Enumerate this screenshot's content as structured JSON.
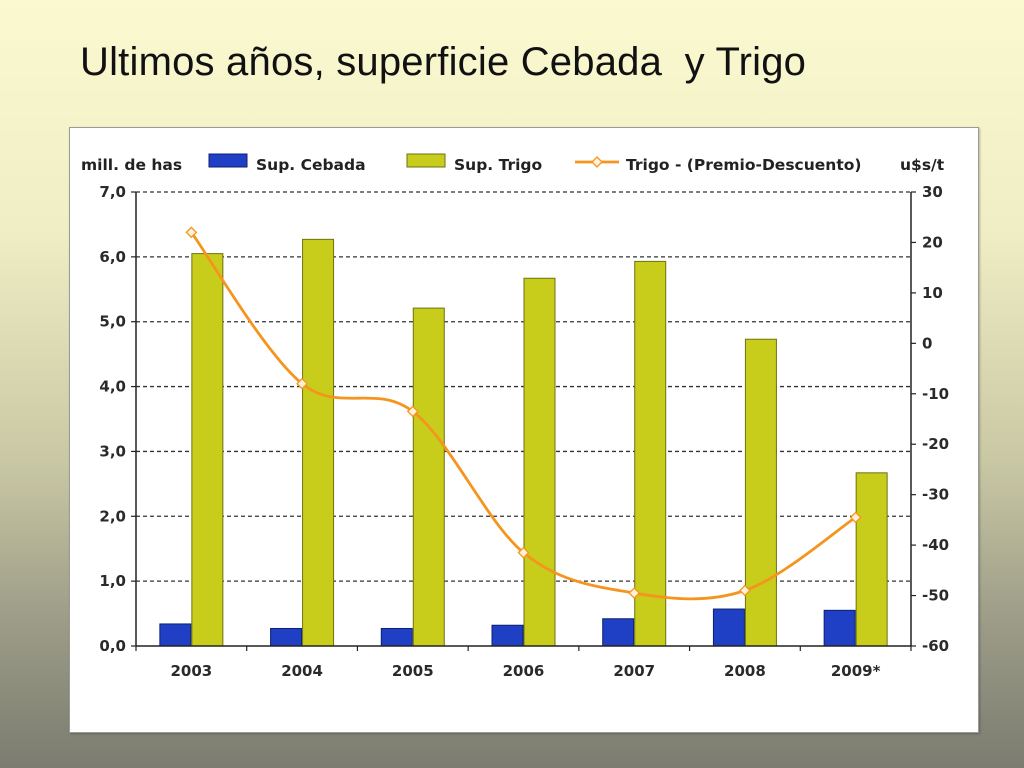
{
  "title": "Ultimos años, superficie Cebada  y Trigo",
  "chart_data": {
    "type": "bar",
    "categories": [
      "2003",
      "2004",
      "2005",
      "2006",
      "2007",
      "2008",
      "2009*"
    ],
    "y_left_label": "mill. de has",
    "y_right_label": "u$s/t",
    "y_left_range": [
      0,
      7
    ],
    "y_right_range": [
      -60,
      30
    ],
    "y_left_ticks": [
      "0,0",
      "1,0",
      "2,0",
      "3,0",
      "4,0",
      "5,0",
      "6,0",
      "7,0"
    ],
    "y_right_ticks": [
      "-60",
      "-50",
      "-40",
      "-30",
      "-20",
      "-10",
      "0",
      "10",
      "20",
      "30"
    ],
    "grid": "horizontal dashed",
    "legend_position": "top",
    "series": [
      {
        "name": "Sup. Cebada",
        "type": "bar",
        "axis": "left",
        "color": "#1f3fc4",
        "values": [
          0.34,
          0.27,
          0.27,
          0.32,
          0.42,
          0.57,
          0.55
        ]
      },
      {
        "name": "Sup. Trigo",
        "type": "bar",
        "axis": "left",
        "color": "#c8cc1a",
        "values": [
          6.05,
          6.27,
          5.21,
          5.67,
          5.93,
          4.73,
          2.67
        ]
      },
      {
        "name": "Trigo - (Premio-Descuento)",
        "type": "line",
        "axis": "right",
        "color": "#f5941e",
        "values": [
          22,
          -8,
          -13.5,
          -41.5,
          -49.5,
          -49,
          -34.5
        ]
      }
    ]
  }
}
